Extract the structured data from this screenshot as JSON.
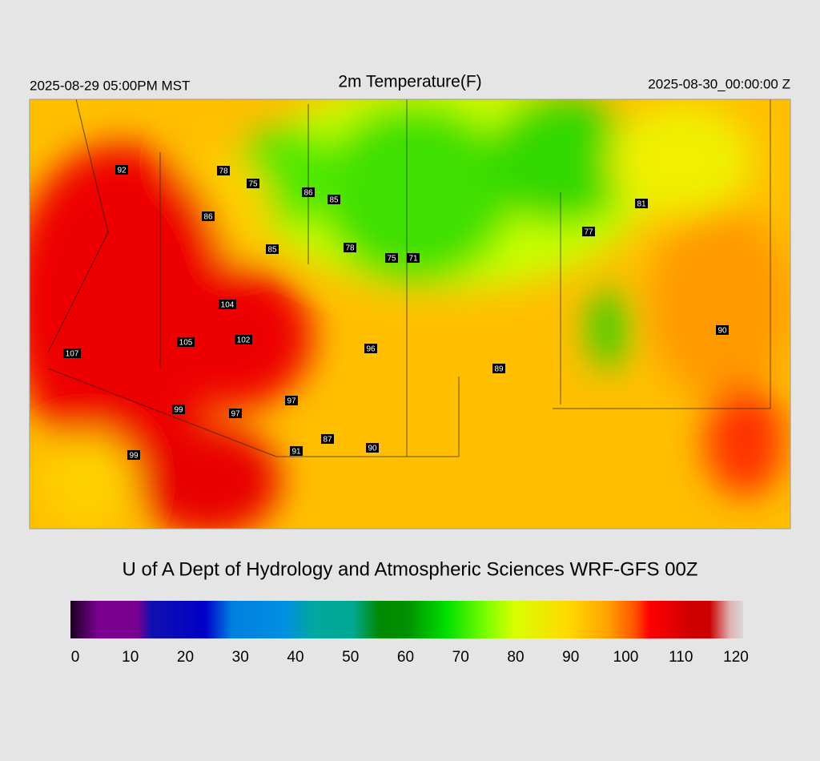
{
  "header": {
    "left": "2025-08-29 05:00PM MST",
    "title": "2m Temperature(F)",
    "right": "2025-08-30_00:00:00 Z"
  },
  "stations": [
    92,
    78,
    75,
    86,
    85,
    86,
    85,
    78,
    75,
    71,
    81,
    77,
    104,
    105,
    102,
    107,
    96,
    89,
    90,
    99,
    97,
    97,
    99,
    87,
    91,
    90
  ],
  "footer": "U of A Dept of Hydrology and Atmospheric Sciences WRF-GFS 00Z",
  "colorbar": {
    "range": [
      0,
      120
    ],
    "ticks": [
      0,
      10,
      20,
      30,
      40,
      50,
      60,
      70,
      80,
      90,
      100,
      110,
      120
    ]
  }
}
